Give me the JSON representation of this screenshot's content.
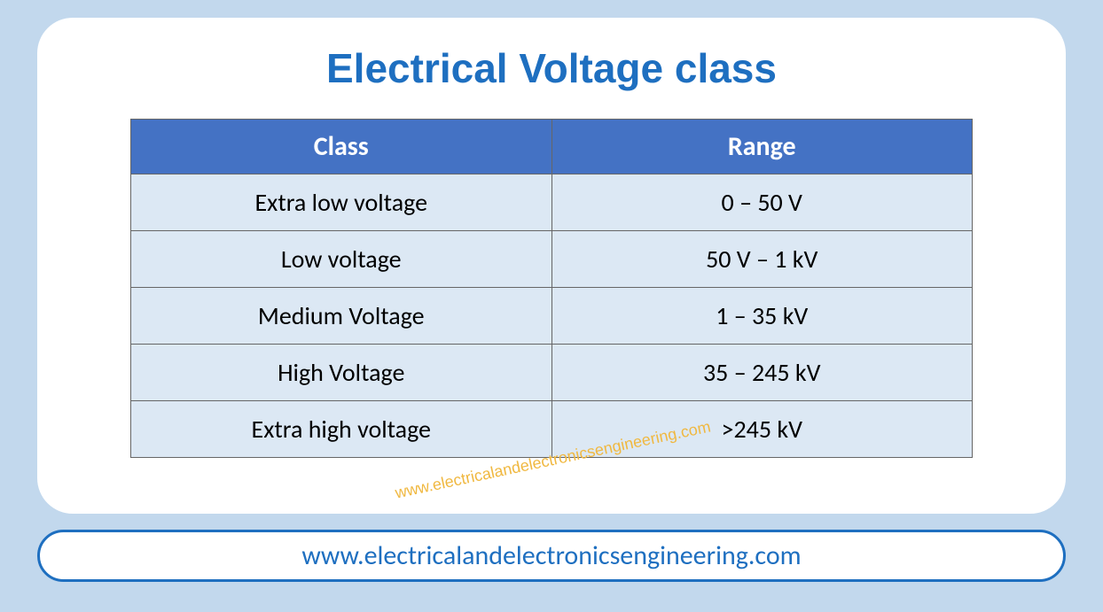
{
  "title": "Electrical Voltage class",
  "table": {
    "columns": [
      "Class",
      "Range"
    ],
    "rows": [
      [
        "Extra low voltage",
        "0 – 50 V"
      ],
      [
        "Low voltage",
        "50 V – 1 kV"
      ],
      [
        "Medium Voltage",
        "1 – 35 kV"
      ],
      [
        "High Voltage",
        "35 – 245 kV"
      ],
      [
        "Extra high voltage",
        ">245 kV"
      ]
    ],
    "header_bg_color": "#4472c4",
    "header_text_color": "#ffffff",
    "cell_bg_color": "#dce8f4",
    "cell_text_color": "#000000",
    "border_color": "#666666",
    "header_fontsize": 30,
    "cell_fontsize": 28
  },
  "watermark": "www.electricalandelectronicsengineering.com",
  "footer": "www.electricalandelectronicsengineering.com",
  "colors": {
    "page_bg": "#c2d8ed",
    "card_bg": "#ffffff",
    "title_color": "#1e6fc0",
    "footer_border": "#1e6fc0",
    "footer_text": "#1e6fc0",
    "watermark_color": "#f0b840"
  },
  "typography": {
    "title_fontsize": 46,
    "footer_fontsize": 30,
    "watermark_fontsize": 18
  }
}
